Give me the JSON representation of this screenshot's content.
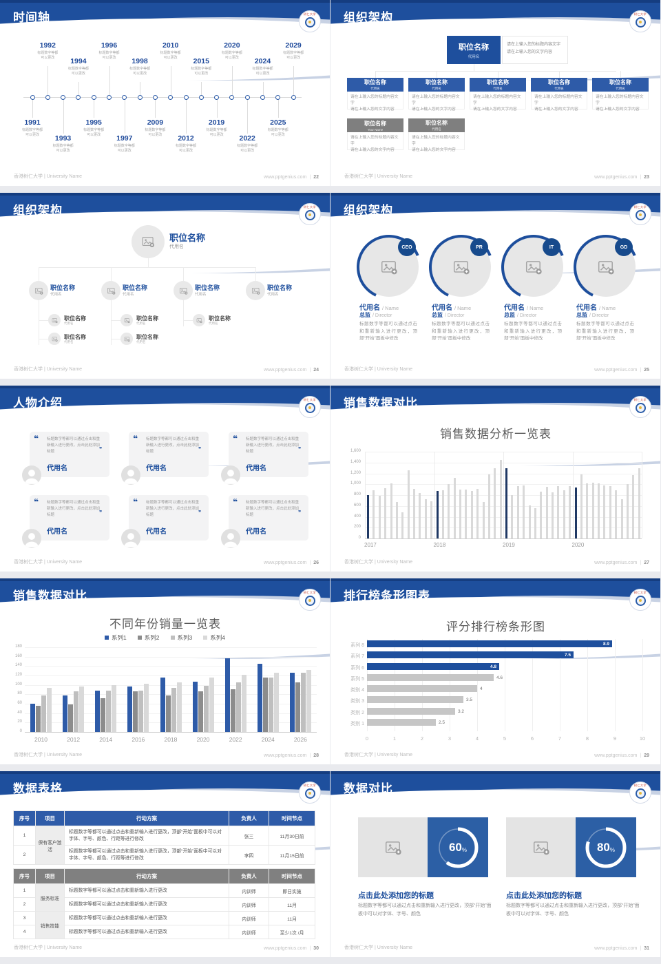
{
  "app": {
    "background": "#e9eaee",
    "slide_background": "#ffffff"
  },
  "theme": {
    "header_blue": "#1e4f9d",
    "header_dark": "#153d80",
    "accent_navy": "#1f3864",
    "bar_blue": "#2e5ba8",
    "gray_bar": "#c6c6c6",
    "footer_gray": "#bcbcbc"
  },
  "header": {
    "logo_text": "树仁大学"
  },
  "footer": {
    "left": "香港树仁大学 | University Name",
    "site": "www.pptgenius.com",
    "sep": "|"
  },
  "slides": [
    {
      "title": "时间轴",
      "page": "22",
      "timeline": {
        "desc_line1": "标题数字等都",
        "desc_line2": "可以更改",
        "years": [
          "1991",
          "1992",
          "1993",
          "1994",
          "1995",
          "1996",
          "1997",
          "1998",
          "2009",
          "2010",
          "2012",
          "2015",
          "2019",
          "2020",
          "2022",
          "2024",
          "2025",
          "2029"
        ]
      }
    },
    {
      "title": "组织架构",
      "page": "23",
      "org": {
        "root": {
          "title": "职位名称",
          "subtitle": "代用名"
        },
        "note_line1": "请在上输入您的标题内容文字",
        "note_line2": "请在上输入您的文字内容",
        "body_line1": "请在上输入您的标题内容文字",
        "body_line2": "请在上输入您的文字内容",
        "children": [
          {
            "title": "职位名称",
            "subtitle": "代用名"
          },
          {
            "title": "职位名称",
            "subtitle": "代用名"
          },
          {
            "title": "职位名称",
            "subtitle": "代用名"
          },
          {
            "title": "职位名称",
            "subtitle": "代用名"
          },
          {
            "title": "职位名称",
            "subtitle": "代用名"
          }
        ],
        "extras": [
          {
            "title": "职位名称",
            "subtitle": "Your Name"
          },
          {
            "title": "职位名称",
            "subtitle": "代用名"
          }
        ]
      }
    },
    {
      "title": "组织架构",
      "page": "24",
      "tree": {
        "root": {
          "title": "职位名称",
          "subtitle": "代用名"
        },
        "nodes": [
          {
            "title": "职位名称",
            "subtitle": "代用名",
            "children": [
              {
                "title": "职位名称",
                "subtitle": "代用名"
              },
              {
                "title": "职位名称",
                "subtitle": "代用名"
              }
            ]
          },
          {
            "title": "职位名称",
            "subtitle": "代用名",
            "children": [
              {
                "title": "职位名称",
                "subtitle": "代用名"
              },
              {
                "title": "职位名称",
                "subtitle": "代用名"
              }
            ]
          },
          {
            "title": "职位名称",
            "subtitle": "代用名",
            "children": [
              {
                "title": "职位名称",
                "subtitle": "代用名"
              }
            ]
          },
          {
            "title": "职位名称",
            "subtitle": "代用名",
            "children": []
          }
        ]
      }
    },
    {
      "title": "组织架构",
      "page": "25",
      "profiles": {
        "items": [
          {
            "badge": "CEO",
            "name": "代用名",
            "name_en": "Name",
            "role": "总监",
            "role_en": "Director",
            "body": "标题数字等都可以通过点击和重新输入进行更改，顶部“开始”面板中修改"
          },
          {
            "badge": "PR",
            "name": "代用名",
            "name_en": "Name",
            "role": "总监",
            "role_en": "Director",
            "body": "标题数字等都可以通过点击和重新输入进行更改，顶部“开始”面板中修改"
          },
          {
            "badge": "IT",
            "name": "代用名",
            "name_en": "Name",
            "role": "总监",
            "role_en": "Director",
            "body": "标题数字等都可以通过点击和重新输入进行更改，顶部“开始”面板中修改"
          },
          {
            "badge": "GD",
            "name": "代用名",
            "name_en": "Name",
            "role": "总监",
            "role_en": "Director",
            "body": "标题数字等都可以通过点击和重新输入进行更改，顶部“开始”面板中修改"
          }
        ]
      }
    },
    {
      "title": "人物介绍",
      "page": "26",
      "people": {
        "items": [
          {
            "quote": "标题数字等都可以通过点击和重新输入进行更改，点击此处添加标题",
            "name": "代用名"
          },
          {
            "quote": "标题数字等都可以通过点击和重新输入进行更改，点击此处添加标题",
            "name": "代用名"
          },
          {
            "quote": "标题数字等都可以通过点击和重新输入进行更改，点击此处添加标题",
            "name": "代用名"
          },
          {
            "quote": "标题数字等都可以通过点击和重新输入进行更改，点击此处添加标题",
            "name": "代用名"
          },
          {
            "quote": "标题数字等都可以通过点击和重新输入进行更改，点击此处添加标题",
            "name": "代用名"
          },
          {
            "quote": "标题数字等都可以通过点击和重新输入进行更改，点击此处添加标题",
            "name": "代用名"
          }
        ]
      }
    },
    {
      "title": "销售数据对比",
      "page": "27"
    },
    {
      "title": "销售数据对比",
      "page": "28"
    },
    {
      "title": "排行榜条形图表",
      "page": "29"
    },
    {
      "title": "数据表格",
      "page": "30",
      "tables": [
        {
          "style": "blue",
          "header_color": "#2e5ba8",
          "header": [
            "序号",
            "项目",
            "行动方案",
            "负责人",
            "时间节点"
          ],
          "rows": [
            {
              "no": "1",
              "project": "保有客户激活",
              "project_span": 2,
              "plan": "标题数字等都可以通过点击和重新输入进行更改，顶部“开始”面板中可以对字体、字号、颜色、行距等进行修改",
              "owner": "张三",
              "time": "11月30日前"
            },
            {
              "no": "2",
              "plan": "标题数字等都可以通过点击和重新输入进行更改，顶部“开始”面板中可以对字体、字号、颜色、行距等进行修改",
              "owner": "李四",
              "time": "11月15日前"
            }
          ]
        },
        {
          "style": "gray",
          "header_color": "#808080",
          "header": [
            "序号",
            "项目",
            "行动方案",
            "负责人",
            "时间节点"
          ],
          "rows": [
            {
              "no": "1",
              "project": "服务标准",
              "project_span": 2,
              "plan": "标题数字等都可以通过点击和重新输入进行更改",
              "owner": "内训师",
              "time": "即日实施"
            },
            {
              "no": "2",
              "plan": "标题数字等都可以通过点击和重新输入进行更改",
              "owner": "内训师",
              "time": "11月"
            },
            {
              "no": "3",
              "project": "销售技能",
              "project_span": 2,
              "plan": "标题数字等都可以通过点击和重新输入进行更改",
              "owner": "内训师",
              "time": "11月"
            },
            {
              "no": "4",
              "plan": "标题数字等都可以通过点击和重新输入进行更改",
              "owner": "内训师",
              "time": "至少1次 /月"
            }
          ]
        }
      ]
    },
    {
      "title": "数据对比",
      "page": "31",
      "compare": {
        "items": [
          {
            "percent": 60,
            "percent_label": "60",
            "unit": "%",
            "title": "点击此处添加您的标题",
            "body": "标题数字等都可以通过点击和重新输入进行更改，顶部“开始”面板中可以对字体、字号、颜色"
          },
          {
            "percent": 80,
            "percent_label": "80",
            "unit": "%",
            "title": "点击此处添加您的标题",
            "body": "标题数字等都可以通过点击和重新输入进行更改，顶部“开始”面板中可以对字体、字号、颜色"
          }
        ]
      }
    }
  ],
  "chart_data": [
    {
      "type": "bar",
      "slide_page": "27",
      "title": "销售数据分析一览表",
      "x_groups": [
        "2017",
        "2018",
        "2019",
        "2020"
      ],
      "values_by_group": [
        [
          805,
          890,
          785,
          930,
          1015,
          675,
          480,
          1255,
          910,
          835,
          730,
          690
        ],
        [
          875,
          890,
          1005,
          1115,
          900,
          900,
          875,
          910,
          675,
          1185,
          1300,
          1450
        ],
        [
          1290,
          805,
          960,
          975,
          605,
          565,
          860,
          950,
          845,
          960,
          890,
          970
        ],
        [
          945,
          1185,
          1015,
          1030,
          1015,
          975,
          960,
          890,
          730,
          1005,
          1170,
          1300
        ]
      ],
      "accent_rule": "first bar of each year group highlighted",
      "y_ticks": [
        "0",
        "200",
        "400",
        "600",
        "800",
        "1,000",
        "1,200",
        "1,400",
        "1,600"
      ],
      "y_max": 1600,
      "grid": true,
      "colors": {
        "accent": "#1f3864",
        "normal": "#d9d9d9"
      }
    },
    {
      "type": "grouped-bar",
      "slide_page": "28",
      "title": "不同年份销量一览表",
      "categories": [
        "2010",
        "2012",
        "2014",
        "2016",
        "2018",
        "2020",
        "2022",
        "2024",
        "2026"
      ],
      "series": [
        {
          "name": "系列1",
          "color": "#2e5ba8",
          "values": [
            60,
            78,
            88,
            97,
            116,
            107,
            156,
            145,
            126
          ]
        },
        {
          "name": "系列2",
          "color": "#8c8c8c",
          "values": [
            55,
            58,
            72,
            86,
            77,
            86,
            91,
            116,
            106
          ]
        },
        {
          "name": "系列3",
          "color": "#bfbfbf",
          "values": [
            78,
            86,
            88,
            88,
            94,
            98,
            105,
            116,
            126
          ]
        },
        {
          "name": "系列4",
          "color": "#d9d9d9",
          "values": [
            93,
            96,
            100,
            102,
            106,
            116,
            121,
            126,
            131
          ]
        }
      ],
      "y_max": 180,
      "y_step": 20,
      "legend_position": "top",
      "grid": true
    },
    {
      "type": "hbar",
      "slide_page": "29",
      "title": "评分排行榜条形图",
      "categories": [
        "系列 8",
        "系列 7",
        "系列 6",
        "系列 5",
        "类别 4",
        "类别 3",
        "类别 2",
        "类别 1"
      ],
      "values": [
        8.9,
        7.5,
        4.8,
        4.6,
        4,
        3.5,
        3.2,
        2.5
      ],
      "value_labels": [
        "8.9",
        "7.5",
        "4.8",
        "4.6",
        "4",
        "3.5",
        "3.2",
        "2.5"
      ],
      "highlighted_count": 3,
      "colors": {
        "highlight": "#1e4f9d",
        "normal": "#c6c6c6"
      },
      "x_max": 10,
      "x_step": 1,
      "grid": true
    }
  ]
}
